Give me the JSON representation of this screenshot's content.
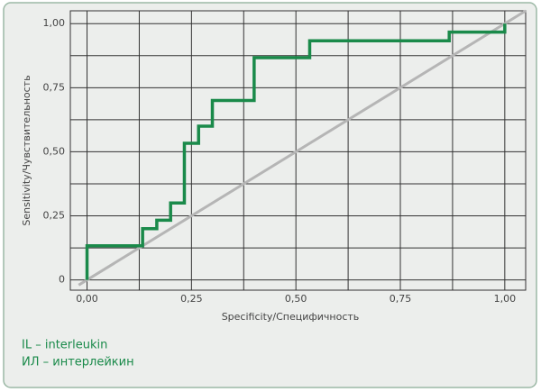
{
  "chart_data": {
    "type": "line",
    "xlabel": "Specificity/Специфичность",
    "ylabel": "Sensitivity/Чувствительность",
    "xlim": [
      -0.04,
      1.05
    ],
    "ylim": [
      -0.04,
      1.05
    ],
    "xticks": [
      {
        "value": 0,
        "label": "0,00"
      },
      {
        "value": 0.25,
        "label": "0,25"
      },
      {
        "value": 0.5,
        "label": "0,50"
      },
      {
        "value": 0.75,
        "label": "0,75"
      },
      {
        "value": 1,
        "label": "1,00"
      }
    ],
    "yticks": [
      0,
      {
        "value": 0.25,
        "label": "0,25"
      },
      {
        "value": 0.5,
        "label": "0,50"
      },
      {
        "value": 0.75,
        "label": "0,75"
      },
      {
        "value": 1,
        "label": "1,00"
      }
    ],
    "minor_grid": [
      0.125,
      0.375,
      0.625,
      0.875
    ],
    "grid": true,
    "series": [
      {
        "color": "#1a8a4a",
        "step": true,
        "x": [
          0,
          0,
          0.133,
          0.133,
          0.167,
          0.167,
          0.2,
          0.2,
          0.233,
          0.233,
          0.267,
          0.267,
          0.3,
          0.3,
          0.4,
          0.4,
          0.533,
          0.533,
          0.867,
          0.867,
          1.0,
          1.0
        ],
        "values": [
          0,
          0.133,
          0.133,
          0.2,
          0.2,
          0.233,
          0.233,
          0.3,
          0.3,
          0.533,
          0.533,
          0.6,
          0.6,
          0.7,
          0.7,
          0.867,
          0.867,
          0.933,
          0.933,
          0.967,
          0.967,
          1.0
        ]
      },
      {
        "color": "#b5b5b5",
        "x": [
          -0.02,
          1.05
        ],
        "values": [
          -0.02,
          1.05
        ]
      }
    ],
    "notes": [
      "IL – interleukin",
      "ИЛ – интерлейкин"
    ]
  }
}
